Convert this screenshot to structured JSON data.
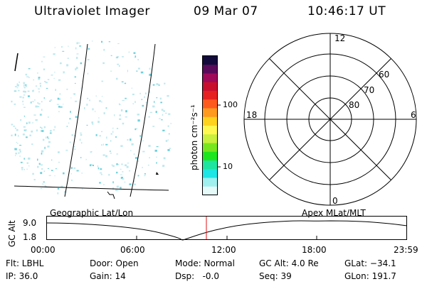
{
  "header": {
    "instrument": "Ultraviolet Imager",
    "date": "09 Mar 07",
    "time": "10:46:17 UT"
  },
  "colorbar": {
    "unit_label": "photon cm⁻²s⁻¹",
    "ticks": [
      "100",
      "10"
    ],
    "colors": [
      "#120a3a",
      "#5a0a5a",
      "#a00a5a",
      "#c8102e",
      "#e62020",
      "#ff5a1e",
      "#ff9a1e",
      "#ffd21e",
      "#fff850",
      "#c8f03c",
      "#78e61e",
      "#1ee61e",
      "#1ee6a0",
      "#1ee6e6",
      "#a0f0f0",
      "#e6fafa"
    ]
  },
  "polar_plot": {
    "mlt_labels": [
      "12",
      "18",
      "6",
      "0"
    ],
    "lat_labels": [
      "60",
      "70",
      "80"
    ]
  },
  "timeline": {
    "y_axis_label": "GC Alt",
    "y_ticks": [
      "9.0",
      "1.8"
    ],
    "left_caption": "Geographic Lat/Lon",
    "right_caption": "Apex  MLat/MLT",
    "x_ticks": [
      "00:00",
      "06:00",
      "12:00",
      "18:00",
      "23:59"
    ],
    "current_time_marker_color": "#e01010"
  },
  "info": {
    "filter": "Flt: LBHL",
    "ip": "IP: 36.0",
    "door": "Door: Open",
    "gain": "Gain: 14",
    "mode": "Mode: Normal",
    "dsp": "Dsp:   -0.0",
    "gc_alt": "GC Alt: 4.0 Re",
    "seq": "Seq: 39",
    "glat": "GLat: −34.1",
    "glon": "GLon: 191.7"
  }
}
